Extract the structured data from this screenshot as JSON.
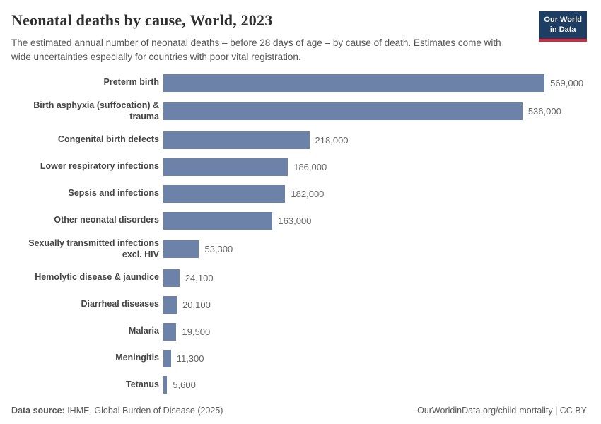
{
  "header": {
    "title": "Neonatal deaths by cause, World, 2023",
    "subtitle": "The estimated annual number of neonatal deaths – before 28 days of age – by cause of death. Estimates come with wide uncertainties especially for countries with poor vital registration.",
    "logo": {
      "line1": "Our World",
      "line2": "in Data"
    }
  },
  "chart_data": {
    "type": "bar",
    "orientation": "horizontal",
    "title": "Neonatal deaths by cause, World, 2023",
    "xlabel": "",
    "ylabel": "",
    "xlim": [
      0,
      600000
    ],
    "grid": false,
    "legend": "none",
    "bar_color": "#6c82a8",
    "categories": [
      "Preterm birth",
      "Birth asphyxia (suffocation) & trauma",
      "Congenital birth defects",
      "Lower respiratory infections",
      "Sepsis and infections",
      "Other neonatal disorders",
      "Sexually transmitted infections excl. HIV",
      "Hemolytic disease & jaundice",
      "Diarrheal diseases",
      "Malaria",
      "Meningitis",
      "Tetanus"
    ],
    "values": [
      569000,
      536000,
      218000,
      186000,
      182000,
      163000,
      53300,
      24100,
      20100,
      19500,
      11300,
      5600
    ],
    "value_labels": [
      "569,000",
      "536,000",
      "218,000",
      "186,000",
      "182,000",
      "163,000",
      "53,300",
      "24,100",
      "20,100",
      "19,500",
      "11,300",
      "5,600"
    ]
  },
  "footer": {
    "source_label": "Data source:",
    "source_text": " IHME, Global Burden of Disease (2025)",
    "credit": "OurWorldinData.org/child-mortality | CC BY"
  }
}
